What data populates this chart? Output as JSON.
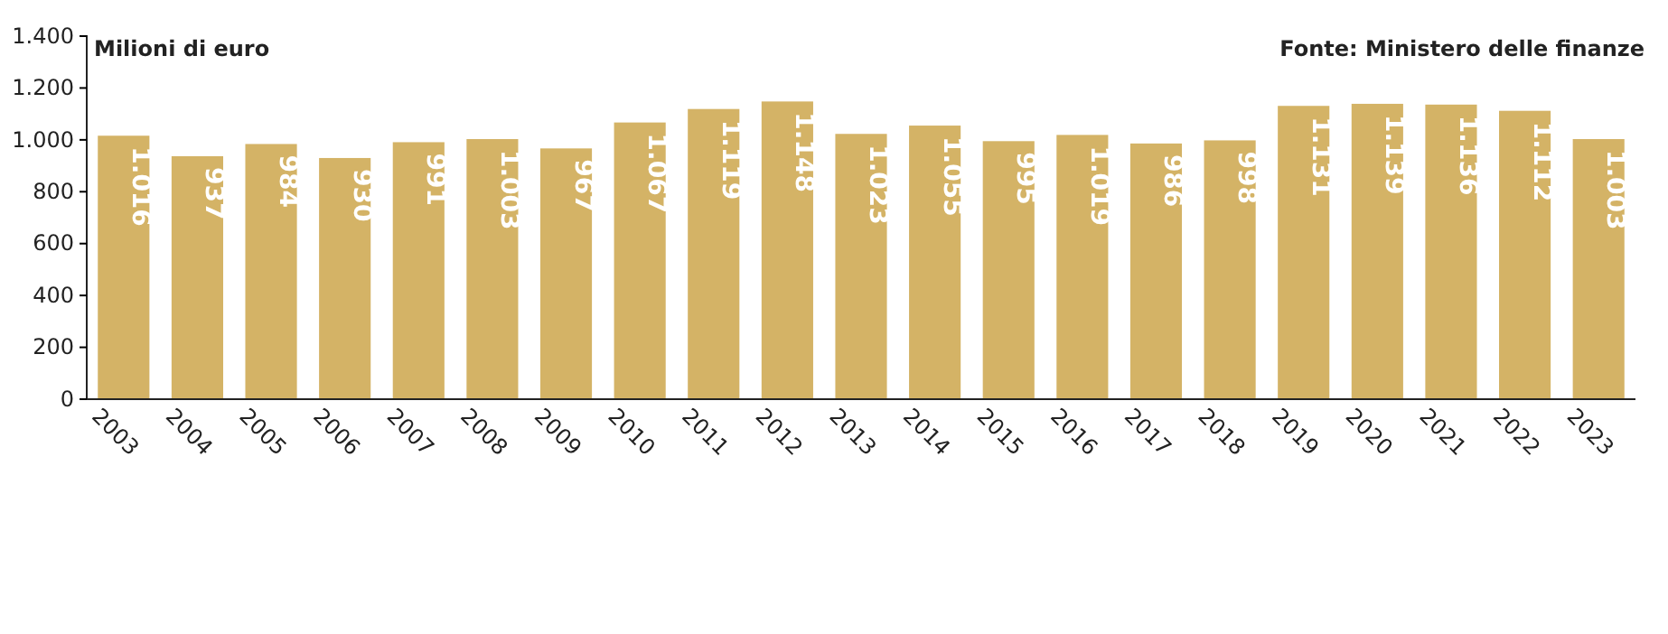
{
  "chart_data": {
    "type": "bar",
    "ylabel": "Milioni di euro",
    "annotations": [
      "Fonte: Ministero delle finanze"
    ],
    "categories": [
      "2003",
      "2004",
      "2005",
      "2006",
      "2007",
      "2008",
      "2009",
      "2010",
      "2011",
      "2012",
      "2013",
      "2014",
      "2015",
      "2016",
      "2017",
      "2018",
      "2019",
      "2020",
      "2021",
      "2022",
      "2023"
    ],
    "values": [
      1016,
      937,
      984,
      930,
      991,
      1003,
      967,
      1067,
      1119,
      1148,
      1023,
      1055,
      995,
      1019,
      986,
      998,
      1131,
      1139,
      1136,
      1112,
      1003
    ],
    "value_labels": [
      "1.016",
      "937",
      "984",
      "930",
      "991",
      "1.003",
      "967",
      "1.067",
      "1.119",
      "1.148",
      "1.023",
      "1.055",
      "995",
      "1.019",
      "986",
      "998",
      "1.131",
      "1.139",
      "1.136",
      "1.112",
      "1.003"
    ],
    "color": "#d4b366",
    "ylim": [
      0,
      1400
    ],
    "yticks": [
      0,
      200,
      400,
      600,
      800,
      {
        "value": 1000,
        "label": "1.000"
      },
      {
        "value": 1200,
        "label": "1.200"
      },
      {
        "value": 1400,
        "label": "1.400"
      }
    ],
    "grid": false
  }
}
